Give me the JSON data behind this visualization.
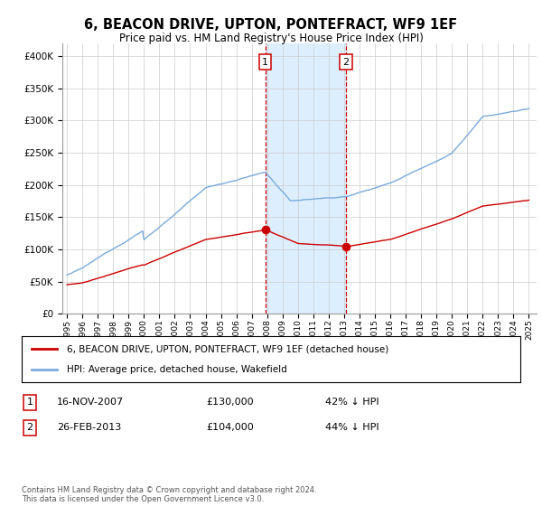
{
  "title": "6, BEACON DRIVE, UPTON, PONTEFRACT, WF9 1EF",
  "subtitle": "Price paid vs. HM Land Registry's House Price Index (HPI)",
  "ylim": [
    0,
    420000
  ],
  "yticks": [
    0,
    50000,
    100000,
    150000,
    200000,
    250000,
    300000,
    350000,
    400000
  ],
  "transaction1_date": "16-NOV-2007",
  "transaction1_price": 130000,
  "transaction1_label": "1",
  "transaction1_pct": "42% ↓ HPI",
  "transaction2_date": "26-FEB-2013",
  "transaction2_price": 104000,
  "transaction2_label": "2",
  "transaction2_pct": "44% ↓ HPI",
  "legend_house": "6, BEACON DRIVE, UPTON, PONTEFRACT, WF9 1EF (detached house)",
  "legend_hpi": "HPI: Average price, detached house, Wakefield",
  "footnote": "Contains HM Land Registry data © Crown copyright and database right 2024.\nThis data is licensed under the Open Government Licence v3.0.",
  "house_color": "#cc0000",
  "hpi_color": "#7aaadd",
  "shade_color": "#ddeeff",
  "transaction_color": "#cc0000",
  "background_color": "#ffffff",
  "grid_color": "#cccccc"
}
